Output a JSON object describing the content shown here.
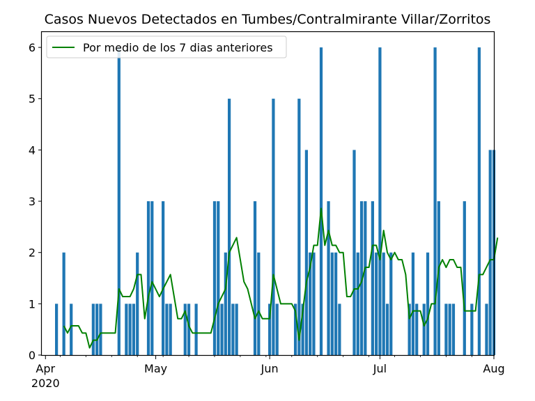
{
  "chart_data": {
    "type": "bar",
    "title": "Casos Nuevos Detectados en Tumbes/Contralmirante Villar/Zorritos",
    "xlabel": "",
    "ylabel": "",
    "ylim": [
      0,
      6.3
    ],
    "x_range": [
      "2020-03-31",
      "2020-08-01"
    ],
    "y_ticks": [
      "0",
      "1",
      "2",
      "3",
      "4",
      "5",
      "6"
    ],
    "x_ticks": [
      {
        "date": "2020-04-01",
        "label": "Apr",
        "sublabel": "2020"
      },
      {
        "date": "2020-05-01",
        "label": "May",
        "sublabel": ""
      },
      {
        "date": "2020-06-01",
        "label": "Jun",
        "sublabel": ""
      },
      {
        "date": "2020-07-01",
        "label": "Jul",
        "sublabel": ""
      },
      {
        "date": "2020-08-01",
        "label": "Aug",
        "sublabel": ""
      }
    ],
    "legend": {
      "placement": "upper-left"
    },
    "grid": false,
    "series": [
      {
        "kind": "bar",
        "color": "#1f77b4",
        "points": [
          {
            "x": "2020-04-04",
            "y": 1
          },
          {
            "x": "2020-04-06",
            "y": 2
          },
          {
            "x": "2020-04-08",
            "y": 1
          },
          {
            "x": "2020-04-14",
            "y": 1
          },
          {
            "x": "2020-04-15",
            "y": 1
          },
          {
            "x": "2020-04-16",
            "y": 1
          },
          {
            "x": "2020-04-21",
            "y": 6
          },
          {
            "x": "2020-04-23",
            "y": 1
          },
          {
            "x": "2020-04-24",
            "y": 1
          },
          {
            "x": "2020-04-25",
            "y": 1
          },
          {
            "x": "2020-04-26",
            "y": 2
          },
          {
            "x": "2020-04-29",
            "y": 3
          },
          {
            "x": "2020-04-30",
            "y": 3
          },
          {
            "x": "2020-05-03",
            "y": 3
          },
          {
            "x": "2020-05-04",
            "y": 1
          },
          {
            "x": "2020-05-05",
            "y": 1
          },
          {
            "x": "2020-05-09",
            "y": 1
          },
          {
            "x": "2020-05-10",
            "y": 1
          },
          {
            "x": "2020-05-12",
            "y": 1
          },
          {
            "x": "2020-05-17",
            "y": 3
          },
          {
            "x": "2020-05-18",
            "y": 3
          },
          {
            "x": "2020-05-19",
            "y": 1
          },
          {
            "x": "2020-05-20",
            "y": 2
          },
          {
            "x": "2020-05-21",
            "y": 5
          },
          {
            "x": "2020-05-22",
            "y": 1
          },
          {
            "x": "2020-05-23",
            "y": 1
          },
          {
            "x": "2020-05-28",
            "y": 3
          },
          {
            "x": "2020-05-29",
            "y": 2
          },
          {
            "x": "2020-06-01",
            "y": 1
          },
          {
            "x": "2020-06-02",
            "y": 5
          },
          {
            "x": "2020-06-03",
            "y": 1
          },
          {
            "x": "2020-06-08",
            "y": 1
          },
          {
            "x": "2020-06-09",
            "y": 5
          },
          {
            "x": "2020-06-10",
            "y": 1
          },
          {
            "x": "2020-06-11",
            "y": 4
          },
          {
            "x": "2020-06-12",
            "y": 2
          },
          {
            "x": "2020-06-13",
            "y": 2
          },
          {
            "x": "2020-06-15",
            "y": 6
          },
          {
            "x": "2020-06-17",
            "y": 3
          },
          {
            "x": "2020-06-18",
            "y": 2
          },
          {
            "x": "2020-06-19",
            "y": 2
          },
          {
            "x": "2020-06-20",
            "y": 1
          },
          {
            "x": "2020-06-24",
            "y": 4
          },
          {
            "x": "2020-06-25",
            "y": 2
          },
          {
            "x": "2020-06-26",
            "y": 3
          },
          {
            "x": "2020-06-27",
            "y": 3
          },
          {
            "x": "2020-06-29",
            "y": 3
          },
          {
            "x": "2020-06-30",
            "y": 2
          },
          {
            "x": "2020-07-01",
            "y": 6
          },
          {
            "x": "2020-07-02",
            "y": 2
          },
          {
            "x": "2020-07-03",
            "y": 1
          },
          {
            "x": "2020-07-04",
            "y": 2
          },
          {
            "x": "2020-07-09",
            "y": 1
          },
          {
            "x": "2020-07-10",
            "y": 2
          },
          {
            "x": "2020-07-11",
            "y": 1
          },
          {
            "x": "2020-07-13",
            "y": 1
          },
          {
            "x": "2020-07-14",
            "y": 2
          },
          {
            "x": "2020-07-16",
            "y": 6
          },
          {
            "x": "2020-07-17",
            "y": 3
          },
          {
            "x": "2020-07-19",
            "y": 1
          },
          {
            "x": "2020-07-20",
            "y": 1
          },
          {
            "x": "2020-07-21",
            "y": 1
          },
          {
            "x": "2020-07-24",
            "y": 3
          },
          {
            "x": "2020-07-26",
            "y": 1
          },
          {
            "x": "2020-07-28",
            "y": 6
          },
          {
            "x": "2020-07-30",
            "y": 1
          },
          {
            "x": "2020-07-31",
            "y": 4
          },
          {
            "x": "2020-08-01",
            "y": 4
          }
        ]
      },
      {
        "kind": "line",
        "name": "Por medio de los 7 dias anteriores",
        "color": "#008000",
        "points": [
          {
            "x": "2020-04-06",
            "y": 0.57
          },
          {
            "x": "2020-04-07",
            "y": 0.43
          },
          {
            "x": "2020-04-08",
            "y": 0.57
          },
          {
            "x": "2020-04-10",
            "y": 0.57
          },
          {
            "x": "2020-04-11",
            "y": 0.43
          },
          {
            "x": "2020-04-12",
            "y": 0.43
          },
          {
            "x": "2020-04-13",
            "y": 0.14
          },
          {
            "x": "2020-04-14",
            "y": 0.29
          },
          {
            "x": "2020-04-15",
            "y": 0.29
          },
          {
            "x": "2020-04-16",
            "y": 0.43
          },
          {
            "x": "2020-04-20",
            "y": 0.43
          },
          {
            "x": "2020-04-21",
            "y": 1.29
          },
          {
            "x": "2020-04-22",
            "y": 1.14
          },
          {
            "x": "2020-04-24",
            "y": 1.14
          },
          {
            "x": "2020-04-25",
            "y": 1.29
          },
          {
            "x": "2020-04-26",
            "y": 1.57
          },
          {
            "x": "2020-04-27",
            "y": 1.57
          },
          {
            "x": "2020-04-28",
            "y": 0.71
          },
          {
            "x": "2020-04-29",
            "y": 1.14
          },
          {
            "x": "2020-04-30",
            "y": 1.43
          },
          {
            "x": "2020-05-02",
            "y": 1.14
          },
          {
            "x": "2020-05-03",
            "y": 1.29
          },
          {
            "x": "2020-05-04",
            "y": 1.43
          },
          {
            "x": "2020-05-05",
            "y": 1.57
          },
          {
            "x": "2020-05-06",
            "y": 1.14
          },
          {
            "x": "2020-05-07",
            "y": 0.71
          },
          {
            "x": "2020-05-08",
            "y": 0.71
          },
          {
            "x": "2020-05-09",
            "y": 0.86
          },
          {
            "x": "2020-05-10",
            "y": 0.57
          },
          {
            "x": "2020-05-11",
            "y": 0.43
          },
          {
            "x": "2020-05-16",
            "y": 0.43
          },
          {
            "x": "2020-05-17",
            "y": 0.71
          },
          {
            "x": "2020-05-18",
            "y": 1.0
          },
          {
            "x": "2020-05-20",
            "y": 1.29
          },
          {
            "x": "2020-05-21",
            "y": 2.0
          },
          {
            "x": "2020-05-23",
            "y": 2.29
          },
          {
            "x": "2020-05-24",
            "y": 1.86
          },
          {
            "x": "2020-05-25",
            "y": 1.43
          },
          {
            "x": "2020-05-26",
            "y": 1.29
          },
          {
            "x": "2020-05-27",
            "y": 1.0
          },
          {
            "x": "2020-05-28",
            "y": 0.71
          },
          {
            "x": "2020-05-29",
            "y": 0.86
          },
          {
            "x": "2020-05-30",
            "y": 0.71
          },
          {
            "x": "2020-06-01",
            "y": 0.71
          },
          {
            "x": "2020-06-02",
            "y": 1.57
          },
          {
            "x": "2020-06-04",
            "y": 1.0
          },
          {
            "x": "2020-06-07",
            "y": 1.0
          },
          {
            "x": "2020-06-08",
            "y": 0.86
          },
          {
            "x": "2020-06-09",
            "y": 0.29
          },
          {
            "x": "2020-06-10",
            "y": 0.86
          },
          {
            "x": "2020-06-11",
            "y": 1.43
          },
          {
            "x": "2020-06-12",
            "y": 1.71
          },
          {
            "x": "2020-06-13",
            "y": 2.14
          },
          {
            "x": "2020-06-14",
            "y": 2.14
          },
          {
            "x": "2020-06-15",
            "y": 2.86
          },
          {
            "x": "2020-06-16",
            "y": 2.14
          },
          {
            "x": "2020-06-17",
            "y": 2.43
          },
          {
            "x": "2020-06-18",
            "y": 2.14
          },
          {
            "x": "2020-06-19",
            "y": 2.14
          },
          {
            "x": "2020-06-20",
            "y": 2.0
          },
          {
            "x": "2020-06-21",
            "y": 2.0
          },
          {
            "x": "2020-06-22",
            "y": 1.14
          },
          {
            "x": "2020-06-23",
            "y": 1.14
          },
          {
            "x": "2020-06-24",
            "y": 1.29
          },
          {
            "x": "2020-06-25",
            "y": 1.29
          },
          {
            "x": "2020-06-26",
            "y": 1.43
          },
          {
            "x": "2020-06-27",
            "y": 1.71
          },
          {
            "x": "2020-06-28",
            "y": 1.71
          },
          {
            "x": "2020-06-29",
            "y": 2.14
          },
          {
            "x": "2020-06-30",
            "y": 2.14
          },
          {
            "x": "2020-07-01",
            "y": 1.86
          },
          {
            "x": "2020-07-02",
            "y": 2.43
          },
          {
            "x": "2020-07-03",
            "y": 2.0
          },
          {
            "x": "2020-07-04",
            "y": 1.86
          },
          {
            "x": "2020-07-05",
            "y": 2.0
          },
          {
            "x": "2020-07-06",
            "y": 1.86
          },
          {
            "x": "2020-07-07",
            "y": 1.86
          },
          {
            "x": "2020-07-08",
            "y": 1.57
          },
          {
            "x": "2020-07-09",
            "y": 0.71
          },
          {
            "x": "2020-07-10",
            "y": 0.86
          },
          {
            "x": "2020-07-12",
            "y": 0.86
          },
          {
            "x": "2020-07-13",
            "y": 0.57
          },
          {
            "x": "2020-07-14",
            "y": 0.71
          },
          {
            "x": "2020-07-15",
            "y": 1.0
          },
          {
            "x": "2020-07-16",
            "y": 1.0
          },
          {
            "x": "2020-07-17",
            "y": 1.71
          },
          {
            "x": "2020-07-18",
            "y": 1.86
          },
          {
            "x": "2020-07-19",
            "y": 1.71
          },
          {
            "x": "2020-07-20",
            "y": 1.86
          },
          {
            "x": "2020-07-21",
            "y": 1.86
          },
          {
            "x": "2020-07-22",
            "y": 1.71
          },
          {
            "x": "2020-07-23",
            "y": 1.71
          },
          {
            "x": "2020-07-24",
            "y": 0.86
          },
          {
            "x": "2020-07-27",
            "y": 0.86
          },
          {
            "x": "2020-07-28",
            "y": 1.57
          },
          {
            "x": "2020-07-29",
            "y": 1.57
          },
          {
            "x": "2020-07-31",
            "y": 1.86
          },
          {
            "x": "2020-08-01",
            "y": 1.86
          },
          {
            "x": "2020-08-02",
            "y": 2.29
          }
        ]
      }
    ]
  }
}
